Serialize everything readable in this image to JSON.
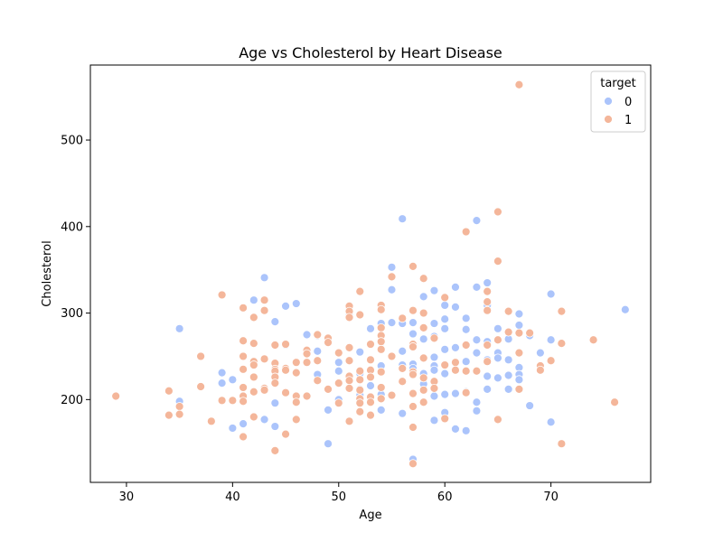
{
  "chart_data": {
    "type": "scatter",
    "title": "Age vs Cholesterol by Heart Disease",
    "xlabel": "Age",
    "ylabel": "Cholesterol",
    "xlim": [
      26.6,
      79.4
    ],
    "ylim": [
      104.3,
      586.7
    ],
    "xticks": [
      30,
      40,
      50,
      60,
      70
    ],
    "yticks": [
      200,
      300,
      400,
      500
    ],
    "grid": false,
    "legend": {
      "title": "target",
      "placement": "top-right"
    },
    "series": [
      {
        "name": "0",
        "color": "#abc4fb",
        "points": [
          [
            35,
            282
          ],
          [
            35,
            198
          ],
          [
            39,
            219
          ],
          [
            39,
            231
          ],
          [
            40,
            223
          ],
          [
            40,
            167
          ],
          [
            41,
            172
          ],
          [
            42,
            315
          ],
          [
            43,
            341
          ],
          [
            43,
            247
          ],
          [
            43,
            177
          ],
          [
            44,
            290
          ],
          [
            44,
            196
          ],
          [
            44,
            169
          ],
          [
            45,
            263
          ],
          [
            45,
            308
          ],
          [
            46,
            311
          ],
          [
            46,
            231
          ],
          [
            47,
            275
          ],
          [
            48,
            274
          ],
          [
            48,
            256
          ],
          [
            48,
            229
          ],
          [
            49,
            188
          ],
          [
            49,
            149
          ],
          [
            50,
            243
          ],
          [
            50,
            233
          ],
          [
            50,
            200
          ],
          [
            51,
            305
          ],
          [
            51,
            299
          ],
          [
            51,
            298
          ],
          [
            51,
            226
          ],
          [
            52,
            255
          ],
          [
            52,
            230
          ],
          [
            52,
            212
          ],
          [
            52,
            205
          ],
          [
            53,
            282
          ],
          [
            53,
            216
          ],
          [
            53,
            203
          ],
          [
            54,
            288
          ],
          [
            54,
            266
          ],
          [
            54,
            239
          ],
          [
            54,
            206
          ],
          [
            54,
            188
          ],
          [
            55,
            353
          ],
          [
            55,
            327
          ],
          [
            55,
            289
          ],
          [
            55,
            205
          ],
          [
            56,
            409
          ],
          [
            56,
            288
          ],
          [
            56,
            256
          ],
          [
            56,
            240
          ],
          [
            56,
            184
          ],
          [
            57,
            303
          ],
          [
            57,
            289
          ],
          [
            57,
            276
          ],
          [
            57,
            241
          ],
          [
            57,
            236
          ],
          [
            57,
            229
          ],
          [
            57,
            131
          ],
          [
            58,
            319
          ],
          [
            58,
            270
          ],
          [
            58,
            248
          ],
          [
            58,
            230
          ],
          [
            58,
            218
          ],
          [
            59,
            326
          ],
          [
            59,
            288
          ],
          [
            59,
            273
          ],
          [
            59,
            249
          ],
          [
            59,
            239
          ],
          [
            59,
            234
          ],
          [
            59,
            204
          ],
          [
            59,
            176
          ],
          [
            60,
            309
          ],
          [
            60,
            293
          ],
          [
            60,
            282
          ],
          [
            60,
            258
          ],
          [
            60,
            230
          ],
          [
            60,
            206
          ],
          [
            60,
            185
          ],
          [
            61,
            330
          ],
          [
            61,
            307
          ],
          [
            61,
            260
          ],
          [
            61,
            243
          ],
          [
            61,
            234
          ],
          [
            61,
            207
          ],
          [
            61,
            166
          ],
          [
            62,
            294
          ],
          [
            62,
            281
          ],
          [
            62,
            263
          ],
          [
            62,
            244
          ],
          [
            62,
            209
          ],
          [
            62,
            164
          ],
          [
            63,
            407
          ],
          [
            63,
            330
          ],
          [
            63,
            269
          ],
          [
            63,
            254
          ],
          [
            63,
            197
          ],
          [
            63,
            187
          ],
          [
            64,
            335
          ],
          [
            64,
            309
          ],
          [
            64,
            267
          ],
          [
            64,
            246
          ],
          [
            64,
            227
          ],
          [
            64,
            212
          ],
          [
            65,
            282
          ],
          [
            65,
            254
          ],
          [
            65,
            248
          ],
          [
            65,
            225
          ],
          [
            66,
            270
          ],
          [
            66,
            246
          ],
          [
            66,
            228
          ],
          [
            66,
            212
          ],
          [
            67,
            299
          ],
          [
            67,
            286
          ],
          [
            67,
            254
          ],
          [
            67,
            237
          ],
          [
            67,
            229
          ],
          [
            67,
            223
          ],
          [
            67,
            212
          ],
          [
            68,
            274
          ],
          [
            68,
            193
          ],
          [
            69,
            254
          ],
          [
            69,
            234
          ],
          [
            70,
            322
          ],
          [
            70,
            269
          ],
          [
            70,
            174
          ],
          [
            71,
            265
          ],
          [
            77,
            304
          ]
        ]
      },
      {
        "name": "1",
        "color": "#f4b69a",
        "points": [
          [
            29,
            204
          ],
          [
            34,
            210
          ],
          [
            34,
            182
          ],
          [
            35,
            192
          ],
          [
            35,
            183
          ],
          [
            37,
            250
          ],
          [
            37,
            215
          ],
          [
            38,
            175
          ],
          [
            39,
            321
          ],
          [
            39,
            199
          ],
          [
            40,
            199
          ],
          [
            41,
            306
          ],
          [
            41,
            268
          ],
          [
            41,
            250
          ],
          [
            41,
            235
          ],
          [
            41,
            214
          ],
          [
            41,
            204
          ],
          [
            41,
            198
          ],
          [
            41,
            157
          ],
          [
            42,
            295
          ],
          [
            42,
            265
          ],
          [
            42,
            244
          ],
          [
            42,
            240
          ],
          [
            42,
            226
          ],
          [
            42,
            209
          ],
          [
            42,
            180
          ],
          [
            43,
            315
          ],
          [
            43,
            303
          ],
          [
            43,
            247
          ],
          [
            43,
            213
          ],
          [
            43,
            211
          ],
          [
            44,
            263
          ],
          [
            44,
            242
          ],
          [
            44,
            235
          ],
          [
            44,
            233
          ],
          [
            44,
            226
          ],
          [
            44,
            219
          ],
          [
            44,
            141
          ],
          [
            45,
            264
          ],
          [
            45,
            236
          ],
          [
            45,
            234
          ],
          [
            45,
            208
          ],
          [
            45,
            160
          ],
          [
            46,
            243
          ],
          [
            46,
            231
          ],
          [
            46,
            204
          ],
          [
            46,
            197
          ],
          [
            46,
            177
          ],
          [
            47,
            257
          ],
          [
            47,
            253
          ],
          [
            47,
            243
          ],
          [
            47,
            204
          ],
          [
            48,
            275
          ],
          [
            48,
            245
          ],
          [
            48,
            222
          ],
          [
            49,
            271
          ],
          [
            49,
            266
          ],
          [
            49,
            212
          ],
          [
            50,
            254
          ],
          [
            50,
            219
          ],
          [
            50,
            196
          ],
          [
            51,
            308
          ],
          [
            51,
            302
          ],
          [
            51,
            295
          ],
          [
            51,
            260
          ],
          [
            51,
            245
          ],
          [
            51,
            227
          ],
          [
            51,
            222
          ],
          [
            51,
            213
          ],
          [
            51,
            175
          ],
          [
            52,
            325
          ],
          [
            52,
            298
          ],
          [
            52,
            233
          ],
          [
            52,
            223
          ],
          [
            52,
            211
          ],
          [
            52,
            201
          ],
          [
            52,
            196
          ],
          [
            52,
            186
          ],
          [
            53,
            264
          ],
          [
            53,
            246
          ],
          [
            53,
            234
          ],
          [
            53,
            226
          ],
          [
            53,
            203
          ],
          [
            53,
            197
          ],
          [
            53,
            182
          ],
          [
            54,
            309
          ],
          [
            54,
            304
          ],
          [
            54,
            283
          ],
          [
            54,
            274
          ],
          [
            54,
            267
          ],
          [
            54,
            258
          ],
          [
            54,
            232
          ],
          [
            54,
            214
          ],
          [
            54,
            201
          ],
          [
            55,
            342
          ],
          [
            55,
            250
          ],
          [
            55,
            205
          ],
          [
            56,
            294
          ],
          [
            56,
            236
          ],
          [
            56,
            221
          ],
          [
            57,
            354
          ],
          [
            57,
            303
          ],
          [
            57,
            264
          ],
          [
            57,
            261
          ],
          [
            57,
            232
          ],
          [
            57,
            229
          ],
          [
            57,
            207
          ],
          [
            57,
            192
          ],
          [
            57,
            168
          ],
          [
            57,
            126
          ],
          [
            58,
            340
          ],
          [
            58,
            300
          ],
          [
            58,
            283
          ],
          [
            58,
            248
          ],
          [
            58,
            225
          ],
          [
            58,
            211
          ],
          [
            58,
            197
          ],
          [
            59,
            271
          ],
          [
            59,
            221
          ],
          [
            59,
            213
          ],
          [
            60,
            318
          ],
          [
            60,
            240
          ],
          [
            60,
            178
          ],
          [
            61,
            243
          ],
          [
            61,
            234
          ],
          [
            62,
            394
          ],
          [
            62,
            263
          ],
          [
            62,
            233
          ],
          [
            62,
            208
          ],
          [
            63,
            233
          ],
          [
            64,
            325
          ],
          [
            64,
            313
          ],
          [
            64,
            303
          ],
          [
            64,
            263
          ],
          [
            64,
            244
          ],
          [
            65,
            417
          ],
          [
            65,
            360
          ],
          [
            65,
            269
          ],
          [
            65,
            177
          ],
          [
            66,
            302
          ],
          [
            66,
            278
          ],
          [
            67,
            564
          ],
          [
            67,
            277
          ],
          [
            67,
            254
          ],
          [
            67,
            212
          ],
          [
            68,
            277
          ],
          [
            69,
            239
          ],
          [
            69,
            234
          ],
          [
            70,
            245
          ],
          [
            71,
            302
          ],
          [
            71,
            265
          ],
          [
            71,
            149
          ],
          [
            74,
            269
          ],
          [
            76,
            197
          ]
        ]
      }
    ]
  }
}
